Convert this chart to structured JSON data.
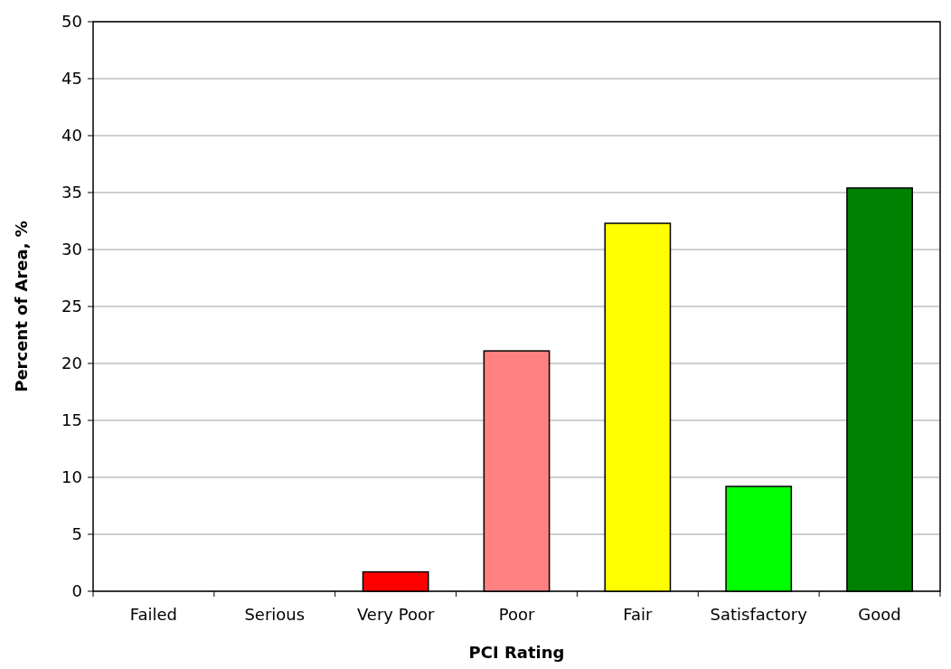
{
  "chart_data": {
    "type": "bar",
    "xlabel": "PCI Rating",
    "ylabel": "Percent of Area, %",
    "categories": [
      "Failed",
      "Serious",
      "Very Poor",
      "Poor",
      "Fair",
      "Satisfactory",
      "Good"
    ],
    "values": [
      0,
      0,
      1.7,
      21.1,
      32.3,
      9.2,
      35.4
    ],
    "colors": [
      "#ff0000",
      "#ff0000",
      "#ff0000",
      "#ff8080",
      "#ffff00",
      "#00ff00",
      "#008000"
    ],
    "ylim": [
      0,
      50
    ],
    "yticks": [
      0,
      5,
      10,
      15,
      20,
      25,
      30,
      35,
      40,
      45,
      50
    ],
    "grid": "y"
  }
}
